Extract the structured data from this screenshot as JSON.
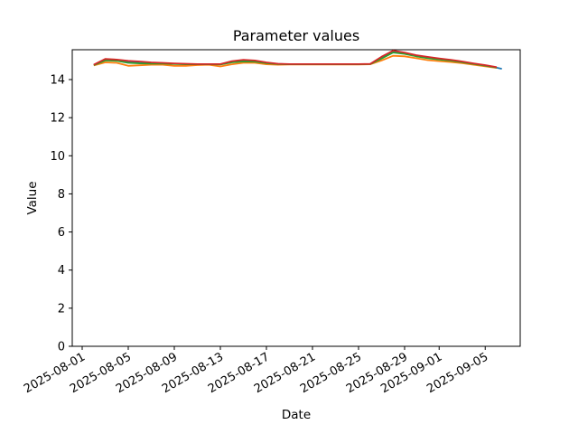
{
  "figure": {
    "background": "#ffffff",
    "text_color": "#000000"
  },
  "chart_data": {
    "type": "line",
    "title": "Parameter values",
    "xlabel": "Date",
    "ylabel": "Value",
    "grid": false,
    "legend": "none",
    "x_tick_rotation_deg": 30,
    "ylim": [
      0,
      15.57
    ],
    "xlim": [
      "2025-07-31",
      "2025-09-08"
    ],
    "y_ticks": [
      0,
      2,
      4,
      6,
      8,
      10,
      12,
      14
    ],
    "x_ticks": [
      "2025-08-01",
      "2025-08-05",
      "2025-08-09",
      "2025-08-13",
      "2025-08-17",
      "2025-08-21",
      "2025-08-25",
      "2025-08-29",
      "2025-09-01",
      "2025-09-05"
    ],
    "x": [
      "2025-08-02",
      "2025-08-03",
      "2025-08-04",
      "2025-08-05",
      "2025-08-06",
      "2025-08-07",
      "2025-08-08",
      "2025-08-09",
      "2025-08-10",
      "2025-08-11",
      "2025-08-12",
      "2025-08-13",
      "2025-08-14",
      "2025-08-15",
      "2025-08-16",
      "2025-08-17",
      "2025-08-18",
      "2025-08-19",
      "2025-08-20",
      "2025-08-21",
      "2025-08-22",
      "2025-08-23",
      "2025-08-24",
      "2025-08-25",
      "2025-08-26",
      "2025-08-27",
      "2025-08-28",
      "2025-08-29",
      "2025-08-30",
      "2025-08-31",
      "2025-09-01",
      "2025-09-02",
      "2025-09-03",
      "2025-09-04",
      "2025-09-05",
      "2025-09-06"
    ],
    "series": [
      {
        "name": "blue",
        "color": "#1f77b4",
        "values": [
          14.77,
          15.02,
          15.0,
          14.92,
          14.88,
          14.86,
          14.85,
          14.83,
          14.81,
          14.8,
          14.8,
          14.8,
          14.93,
          14.99,
          14.96,
          14.87,
          14.82,
          14.8,
          14.8,
          14.8,
          14.8,
          14.8,
          14.8,
          14.8,
          14.81,
          15.14,
          15.46,
          15.38,
          15.24,
          15.15,
          15.07,
          15.01,
          14.92,
          14.83,
          14.74,
          14.62
        ]
      },
      {
        "name": "orange",
        "color": "#ff7f0e",
        "values": [
          14.74,
          14.9,
          14.88,
          14.72,
          14.75,
          14.78,
          14.78,
          14.72,
          14.72,
          14.76,
          14.78,
          14.69,
          14.8,
          14.88,
          14.88,
          14.8,
          14.78,
          14.79,
          14.79,
          14.79,
          14.79,
          14.79,
          14.79,
          14.79,
          14.8,
          15.0,
          15.25,
          15.22,
          15.12,
          15.02,
          14.97,
          14.92,
          14.86,
          14.78,
          14.7,
          14.61
        ]
      },
      {
        "name": "green",
        "color": "#2ca02c",
        "values": [
          14.76,
          15.0,
          14.98,
          14.88,
          14.85,
          14.84,
          14.84,
          14.82,
          14.8,
          14.8,
          14.8,
          14.79,
          14.9,
          14.95,
          14.94,
          14.86,
          14.81,
          14.8,
          14.8,
          14.8,
          14.8,
          14.8,
          14.8,
          14.8,
          14.81,
          15.1,
          15.42,
          15.35,
          15.22,
          15.12,
          15.05,
          14.99,
          14.91,
          14.82,
          14.73,
          14.63
        ]
      },
      {
        "name": "red",
        "color": "#d62728",
        "values": [
          14.78,
          15.08,
          15.05,
          14.98,
          14.95,
          14.9,
          14.88,
          14.85,
          14.83,
          14.81,
          14.81,
          14.81,
          14.97,
          15.04,
          15.0,
          14.9,
          14.83,
          14.81,
          14.81,
          14.81,
          14.81,
          14.81,
          14.81,
          14.81,
          14.82,
          15.2,
          15.52,
          15.42,
          15.28,
          15.19,
          15.11,
          15.04,
          14.95,
          14.85,
          14.76,
          14.65
        ]
      }
    ]
  }
}
